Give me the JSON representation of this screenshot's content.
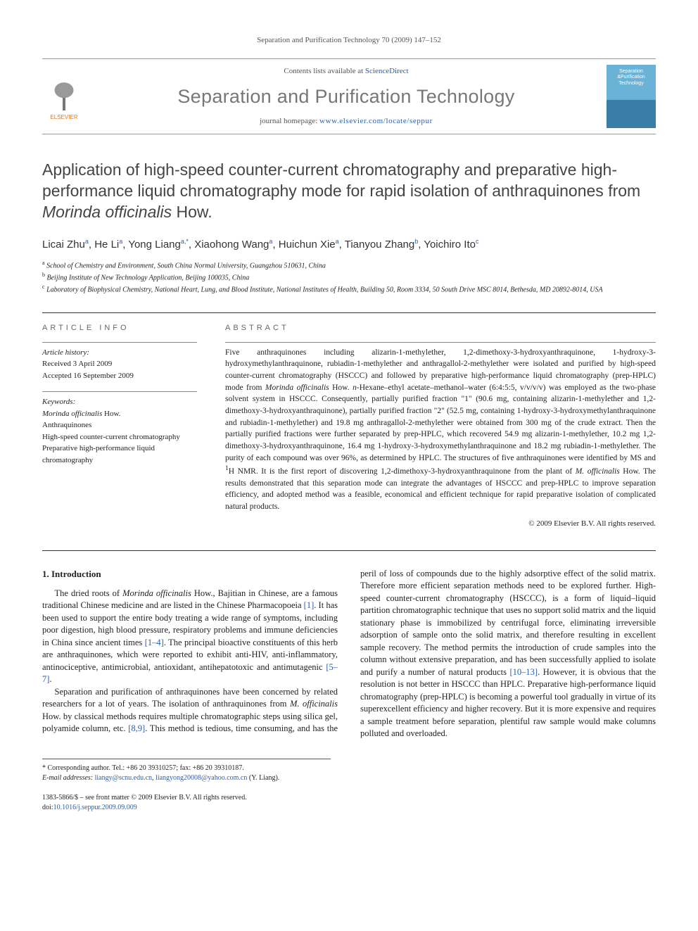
{
  "running_head": "Separation and Purification Technology 70 (2009) 147–152",
  "masthead": {
    "contents_prefix": "Contents lists available at ",
    "contents_link": "ScienceDirect",
    "journal_title": "Separation and Purification Technology",
    "homepage_prefix": "journal homepage: ",
    "homepage_url": "www.elsevier.com/locate/seppur",
    "publisher_logo_label": "ELSEVIER",
    "cover_line1": "Separation",
    "cover_line2": "&Purification",
    "cover_line3": "Technology"
  },
  "article": {
    "title_html": "Application of high-speed counter-current chromatography and preparative high-performance liquid chromatography mode for rapid isolation of anthraquinones from <em>Morinda officinalis</em> How.",
    "authors_html": "Licai Zhu<sup>a</sup>, He Li<sup>a</sup>, Yong Liang<sup>a,*</sup>, Xiaohong Wang<sup>a</sup>, Huichun Xie<sup>a</sup>, Tianyou Zhang<sup>b</sup>, Yoichiro Ito<sup>c</sup>",
    "affiliations": [
      {
        "sup": "a",
        "text": "School of Chemistry and Environment, South China Normal University, Guangzhou 510631, China"
      },
      {
        "sup": "b",
        "text": "Beijing Institute of New Technology Application, Beijing 100035, China"
      },
      {
        "sup": "c",
        "text": "Laboratory of Biophysical Chemistry, National Heart, Lung, and Blood Institute, National Institutes of Health, Building 50, Room 3334, 50 South Drive MSC 8014, Bethesda, MD 20892-8014, USA"
      }
    ]
  },
  "info": {
    "section_label": "article info",
    "history_label": "Article history:",
    "received": "Received 3 April 2009",
    "accepted": "Accepted 16 September 2009",
    "keywords_label": "Keywords:",
    "keywords": [
      "<em>Morinda officinalis</em> How.",
      "Anthraquinones",
      "High-speed counter-current chromatography",
      "Preparative high-performance liquid chromatography"
    ]
  },
  "abstract": {
    "section_label": "abstract",
    "text_html": "Five anthraquinones including alizarin-1-methylether, 1,2-dimethoxy-3-hydroxyanthraquinone, 1-hydroxy-3-hydroxymethylanthraquinone, rubiadin-1-methylether and anthragallol-2-methylether were isolated and purified by high-speed counter-current chromatography (HSCCC) and followed by preparative high-performance liquid chromatography (prep-HPLC) mode from <em>Morinda officinalis</em> How. <em>n</em>-Hexane–ethyl acetate–methanol–water (6:4:5:5, v/v/v/v) was employed as the two-phase solvent system in HSCCC. Consequently, partially purified fraction \"1\" (90.6 mg, containing alizarin-1-methylether and 1,2-dimethoxy-3-hydroxyanthraquinone), partially purified fraction \"2\" (52.5 mg, containing 1-hydroxy-3-hydroxymethylanthraquinone and rubiadin-1-methylether) and 19.8 mg anthragallol-2-methylether were obtained from 300 mg of the crude extract. Then the partially purified fractions were further separated by prep-HPLC, which recovered 54.9 mg alizarin-1-methylether, 10.2 mg 1,2-dimethoxy-3-hydroxyanthraquinone, 16.4 mg 1-hydroxy-3-hydroxymethylanthraquinone and 18.2 mg rubiadin-1-methylether. The purity of each compound was over 96%, as determined by HPLC. The structures of five anthraquinones were identified by MS and <sup>1</sup>H NMR. It is the first report of discovering 1,2-dimethoxy-3-hydroxyanthraquinone from the plant of <em>M. officinalis</em> How. The results demonstrated that this separation mode can integrate the advantages of HSCCC and prep-HPLC to improve separation efficiency, and adopted method was a feasible, economical and efficient technique for rapid preparative isolation of complicated natural products.",
    "copyright": "© 2009 Elsevier B.V. All rights reserved."
  },
  "body": {
    "heading": "1. Introduction",
    "para1_html": "The dried roots of <em>Morinda officinalis</em> How., Bajitian in Chinese, are a famous traditional Chinese medicine and are listed in the Chinese Pharmacopoeia <a class=\"ref\">[1]</a>. It has been used to support the entire body treating a wide range of symptoms, including poor digestion, high blood pressure, respiratory problems and immune deficiencies in China since ancient times <a class=\"ref\">[1–4]</a>. The principal bioactive constituents of this herb are anthraquinones, which were reported to exhibit anti-HIV, anti-inflammatory, antinociceptive, antimicrobial, antioxidant, antihepatotoxic and antimutagenic <a class=\"ref\">[5–7]</a>.",
    "para2_html": "Separation and purification of anthraquinones have been concerned by related researchers for a lot of years. The isolation of anthraquinones from <em>M. officinalis</em> How. by classical methods requires multiple chromatographic steps using silica gel, polyamide column, etc. <a class=\"ref\">[8,9]</a>. This method is tedious, time consuming, and has the peril of loss of compounds due to the highly adsorptive effect of the solid matrix. Therefore more efficient separation methods need to be explored further. High-speed counter-current chromatography (HSCCC), is a form of liquid–liquid partition chromatographic technique that uses no support solid matrix and the liquid stationary phase is immobilized by centrifugal force, eliminating irreversible adsorption of sample onto the solid matrix, and therefore resulting in excellent sample recovery. The method permits the introduction of crude samples into the column without extensive preparation, and has been successfully applied to isolate and purify a number of natural products <a class=\"ref\">[10–13]</a>. However, it is obvious that the resolution is not better in HSCCC than HPLC. Preparative high-performance liquid chromatography (prep-HPLC) is becoming a powerful tool gradually in virtue of its superexcellent efficiency and higher recovery. But it is more expensive and requires a sample treatment before separation, plentiful raw sample would make columns polluted and overloaded."
  },
  "corresponding": {
    "marker": "*",
    "label": "Corresponding author. Tel.: +86 20 39310257; fax: +86 20 39310187.",
    "email_label": "E-mail addresses:",
    "email1": "liangy@scnu.edu.cn",
    "email2": "liangyong20008@yahoo.com.cn",
    "who": "(Y. Liang)."
  },
  "footer": {
    "issn_line": "1383-5866/$ – see front matter © 2009 Elsevier B.V. All rights reserved.",
    "doi_label": "doi:",
    "doi": "10.1016/j.seppur.2009.09.009"
  },
  "colors": {
    "link": "#2a5db0",
    "publisher_orange": "#e67817",
    "rule_gray": "#333333",
    "page_bg": "#ffffff"
  }
}
